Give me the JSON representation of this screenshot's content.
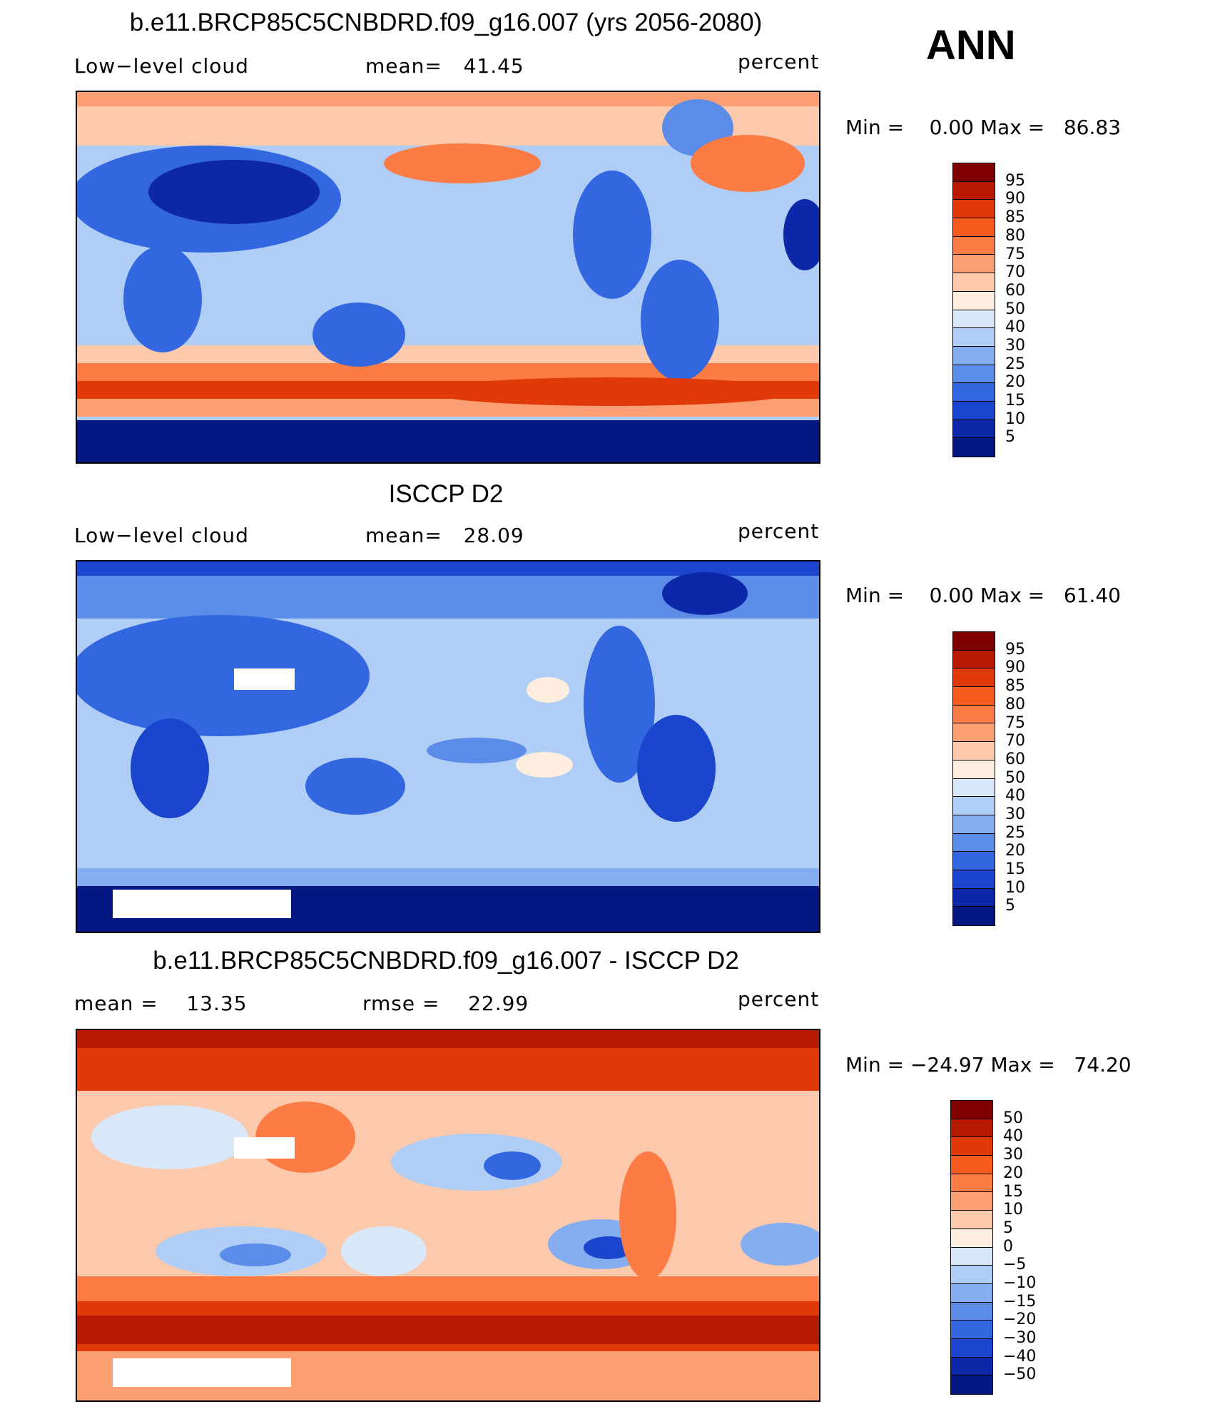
{
  "season": "ANN",
  "panels": [
    {
      "title": "b.e11.BRCP85C5CNBDRD.f09_g16.007 (yrs 2056-2080)",
      "left_label": "Low−level cloud",
      "center_label": "mean=   41.45",
      "right_label": "percent",
      "minmax": "Min =    0.00 Max =   86.83",
      "colorbar_labels": [
        "95",
        "90",
        "85",
        "80",
        "75",
        "70",
        "60",
        "50",
        "40",
        "30",
        "25",
        "20",
        "15",
        "10",
        "5"
      ]
    },
    {
      "title": "ISCCP D2",
      "left_label": "Low−level cloud",
      "center_label": "mean=   28.09",
      "right_label": "percent",
      "minmax": "Min =    0.00 Max =   61.40",
      "colorbar_labels": [
        "95",
        "90",
        "85",
        "80",
        "75",
        "70",
        "60",
        "50",
        "40",
        "30",
        "25",
        "20",
        "15",
        "10",
        "5"
      ]
    },
    {
      "title": "b.e11.BRCP85C5CNBDRD.f09_g16.007 - ISCCP D2",
      "left_label": "mean =    13.35",
      "center_label": "rmse =    22.99",
      "right_label": "percent",
      "minmax": "Min = −24.97 Max =   74.20",
      "colorbar_labels": [
        "50",
        "40",
        "30",
        "20",
        "15",
        "10",
        "5",
        "0",
        "−5",
        "−10",
        "−15",
        "−20",
        "−30",
        "−40",
        "−50"
      ]
    }
  ],
  "colors": {
    "scale": [
      "#7f0000",
      "#b51a00",
      "#e03a08",
      "#f55a1f",
      "#fb7c45",
      "#fc9e74",
      "#fdc9ac",
      "#fdeedf",
      "#d8e8f8",
      "#b0cdf5",
      "#85aef0",
      "#5a8ce8",
      "#3367e0",
      "#1a45cc",
      "#0c27a8",
      "#051780"
    ]
  }
}
